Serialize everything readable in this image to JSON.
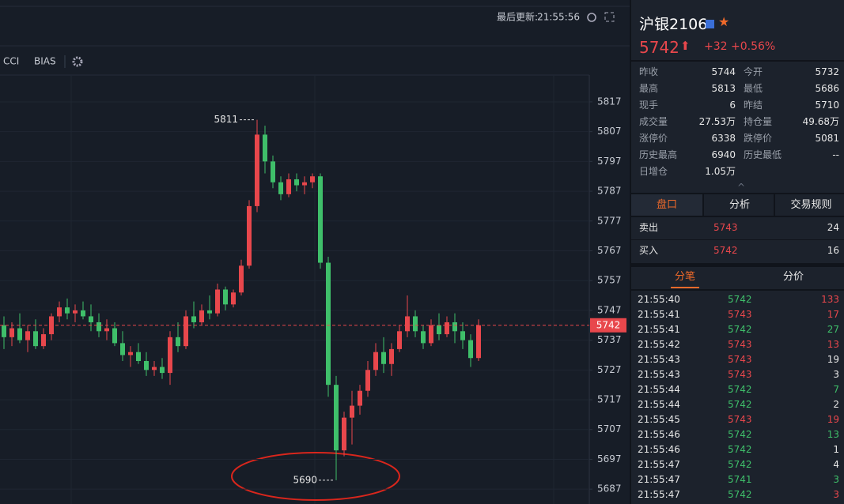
{
  "toolbar": {
    "last_update_label": "最后更新:",
    "last_update": "21:55:56",
    "indicators": [
      "CCI",
      "BIAS"
    ]
  },
  "chart_data": {
    "type": "candlestick",
    "up_color": "#e8474c",
    "down_color": "#3fbf6a",
    "open": [
      5742,
      5738,
      5741,
      5737,
      5740,
      5735,
      5739,
      5745,
      5748,
      5746,
      5747,
      5745,
      5743,
      5740,
      5741,
      5736,
      5732,
      5733,
      5730,
      5727,
      5728,
      5726,
      5738,
      5735,
      5745,
      5743,
      5747,
      5746,
      5754,
      5749,
      5753,
      5762,
      5782,
      5806,
      5797,
      5790,
      5786,
      5791,
      5789,
      5790,
      5792,
      5763,
      5722,
      5700,
      5711,
      5715,
      5720,
      5727,
      5733,
      5729,
      5734,
      5740,
      5745,
      5740,
      5736,
      5742,
      5739,
      5743,
      5740,
      5737,
      5731
    ],
    "high": [
      5745,
      5743,
      5746,
      5742,
      5744,
      5741,
      5746,
      5750,
      5751,
      5749,
      5750,
      5749,
      5746,
      5744,
      5743,
      5740,
      5735,
      5736,
      5733,
      5730,
      5731,
      5740,
      5743,
      5747,
      5750,
      5749,
      5752,
      5756,
      5755,
      5754,
      5764,
      5784,
      5811,
      5809,
      5799,
      5792,
      5793,
      5793,
      5792,
      5793,
      5793,
      5765,
      5725,
      5713,
      5720,
      5722,
      5730,
      5736,
      5738,
      5736,
      5742,
      5752,
      5747,
      5742,
      5744,
      5746,
      5745,
      5746,
      5743,
      5739,
      5744
    ],
    "low": [
      5734,
      5735,
      5736,
      5733,
      5734,
      5734,
      5737,
      5743,
      5744,
      5743,
      5744,
      5740,
      5738,
      5737,
      5735,
      5730,
      5728,
      5729,
      5725,
      5725,
      5724,
      5722,
      5733,
      5734,
      5741,
      5742,
      5744,
      5745,
      5747,
      5748,
      5752,
      5761,
      5780,
      5793,
      5788,
      5784,
      5785,
      5787,
      5786,
      5788,
      5761,
      5718,
      5690,
      5698,
      5702,
      5712,
      5718,
      5725,
      5726,
      5725,
      5733,
      5738,
      5738,
      5734,
      5735,
      5737,
      5738,
      5736,
      5734,
      5728,
      5730
    ],
    "close": [
      5738,
      5741,
      5737,
      5740,
      5735,
      5739,
      5745,
      5748,
      5746,
      5747,
      5745,
      5743,
      5740,
      5741,
      5736,
      5732,
      5733,
      5730,
      5727,
      5728,
      5726,
      5738,
      5735,
      5745,
      5743,
      5747,
      5746,
      5754,
      5749,
      5753,
      5762,
      5782,
      5806,
      5797,
      5790,
      5786,
      5791,
      5789,
      5790,
      5792,
      5763,
      5722,
      5700,
      5711,
      5715,
      5720,
      5727,
      5733,
      5729,
      5734,
      5740,
      5745,
      5740,
      5736,
      5742,
      5739,
      5743,
      5740,
      5737,
      5731,
      5742
    ],
    "annotations": [
      5811,
      5690
    ],
    "last_price": 5742,
    "ylim": [
      5682,
      5826
    ],
    "yticks": [
      5817,
      5807,
      5797,
      5787,
      5777,
      5767,
      5757,
      5747,
      5737,
      5727,
      5717,
      5707,
      5697,
      5687
    ],
    "grid": true
  },
  "quote": {
    "name": "沪银2106",
    "price": 5742,
    "change": "+32",
    "change_pct": "+0.56%"
  },
  "stats": [
    [
      "昨收",
      "5744",
      "今开",
      "5732"
    ],
    [
      "最高",
      "5813",
      "最低",
      "5686"
    ],
    [
      "现手",
      "6",
      "昨结",
      "5710"
    ],
    [
      "成交量",
      "27.53万",
      "持仓量",
      "49.68万"
    ],
    [
      "涨停价",
      "6338",
      "跌停价",
      "5081"
    ],
    [
      "历史最高",
      "6940",
      "历史最低",
      "--"
    ],
    [
      "日增仓",
      "1.05万"
    ]
  ],
  "tabs": [
    "盘口",
    "分析",
    "交易规则"
  ],
  "orderbook": [
    [
      "卖出",
      "5743",
      "24"
    ],
    [
      "买入",
      "5742",
      "16"
    ]
  ],
  "trade_tabs": [
    "分笔",
    "分价"
  ],
  "trades": [
    {
      "time": "21:55:40",
      "price": "5742",
      "volume": "133",
      "colors": [
        "#3fbf6a",
        "#e8474c"
      ]
    },
    {
      "time": "21:55:41",
      "price": "5743",
      "volume": "17",
      "colors": [
        "#e8474c",
        "#e8474c"
      ]
    },
    {
      "time": "21:55:41",
      "price": "5742",
      "volume": "27",
      "colors": [
        "#3fbf6a",
        "#3fbf6a"
      ]
    },
    {
      "time": "21:55:42",
      "price": "5743",
      "volume": "13",
      "colors": [
        "#e8474c",
        "#e8474c"
      ]
    },
    {
      "time": "21:55:43",
      "price": "5743",
      "volume": "19",
      "colors": [
        "#e8474c",
        "#e6e6e6"
      ]
    },
    {
      "time": "21:55:43",
      "price": "5743",
      "volume": "3",
      "colors": [
        "#e8474c",
        "#e6e6e6"
      ]
    },
    {
      "time": "21:55:44",
      "price": "5742",
      "volume": "7",
      "colors": [
        "#3fbf6a",
        "#3fbf6a"
      ]
    },
    {
      "time": "21:55:44",
      "price": "5742",
      "volume": "2",
      "colors": [
        "#3fbf6a",
        "#e6e6e6"
      ]
    },
    {
      "time": "21:55:45",
      "price": "5743",
      "volume": "19",
      "colors": [
        "#e8474c",
        "#e8474c"
      ]
    },
    {
      "time": "21:55:46",
      "price": "5742",
      "volume": "13",
      "colors": [
        "#3fbf6a",
        "#3fbf6a"
      ]
    },
    {
      "time": "21:55:46",
      "price": "5742",
      "volume": "1",
      "colors": [
        "#3fbf6a",
        "#e6e6e6"
      ]
    },
    {
      "time": "21:55:47",
      "price": "5742",
      "volume": "4",
      "colors": [
        "#3fbf6a",
        "#e6e6e6"
      ]
    },
    {
      "time": "21:55:47",
      "price": "5741",
      "volume": "3",
      "colors": [
        "#3fbf6a",
        "#3fbf6a"
      ]
    },
    {
      "time": "21:55:47",
      "price": "5742",
      "volume": "3",
      "colors": [
        "#3fbf6a",
        "#e8474c"
      ]
    }
  ]
}
